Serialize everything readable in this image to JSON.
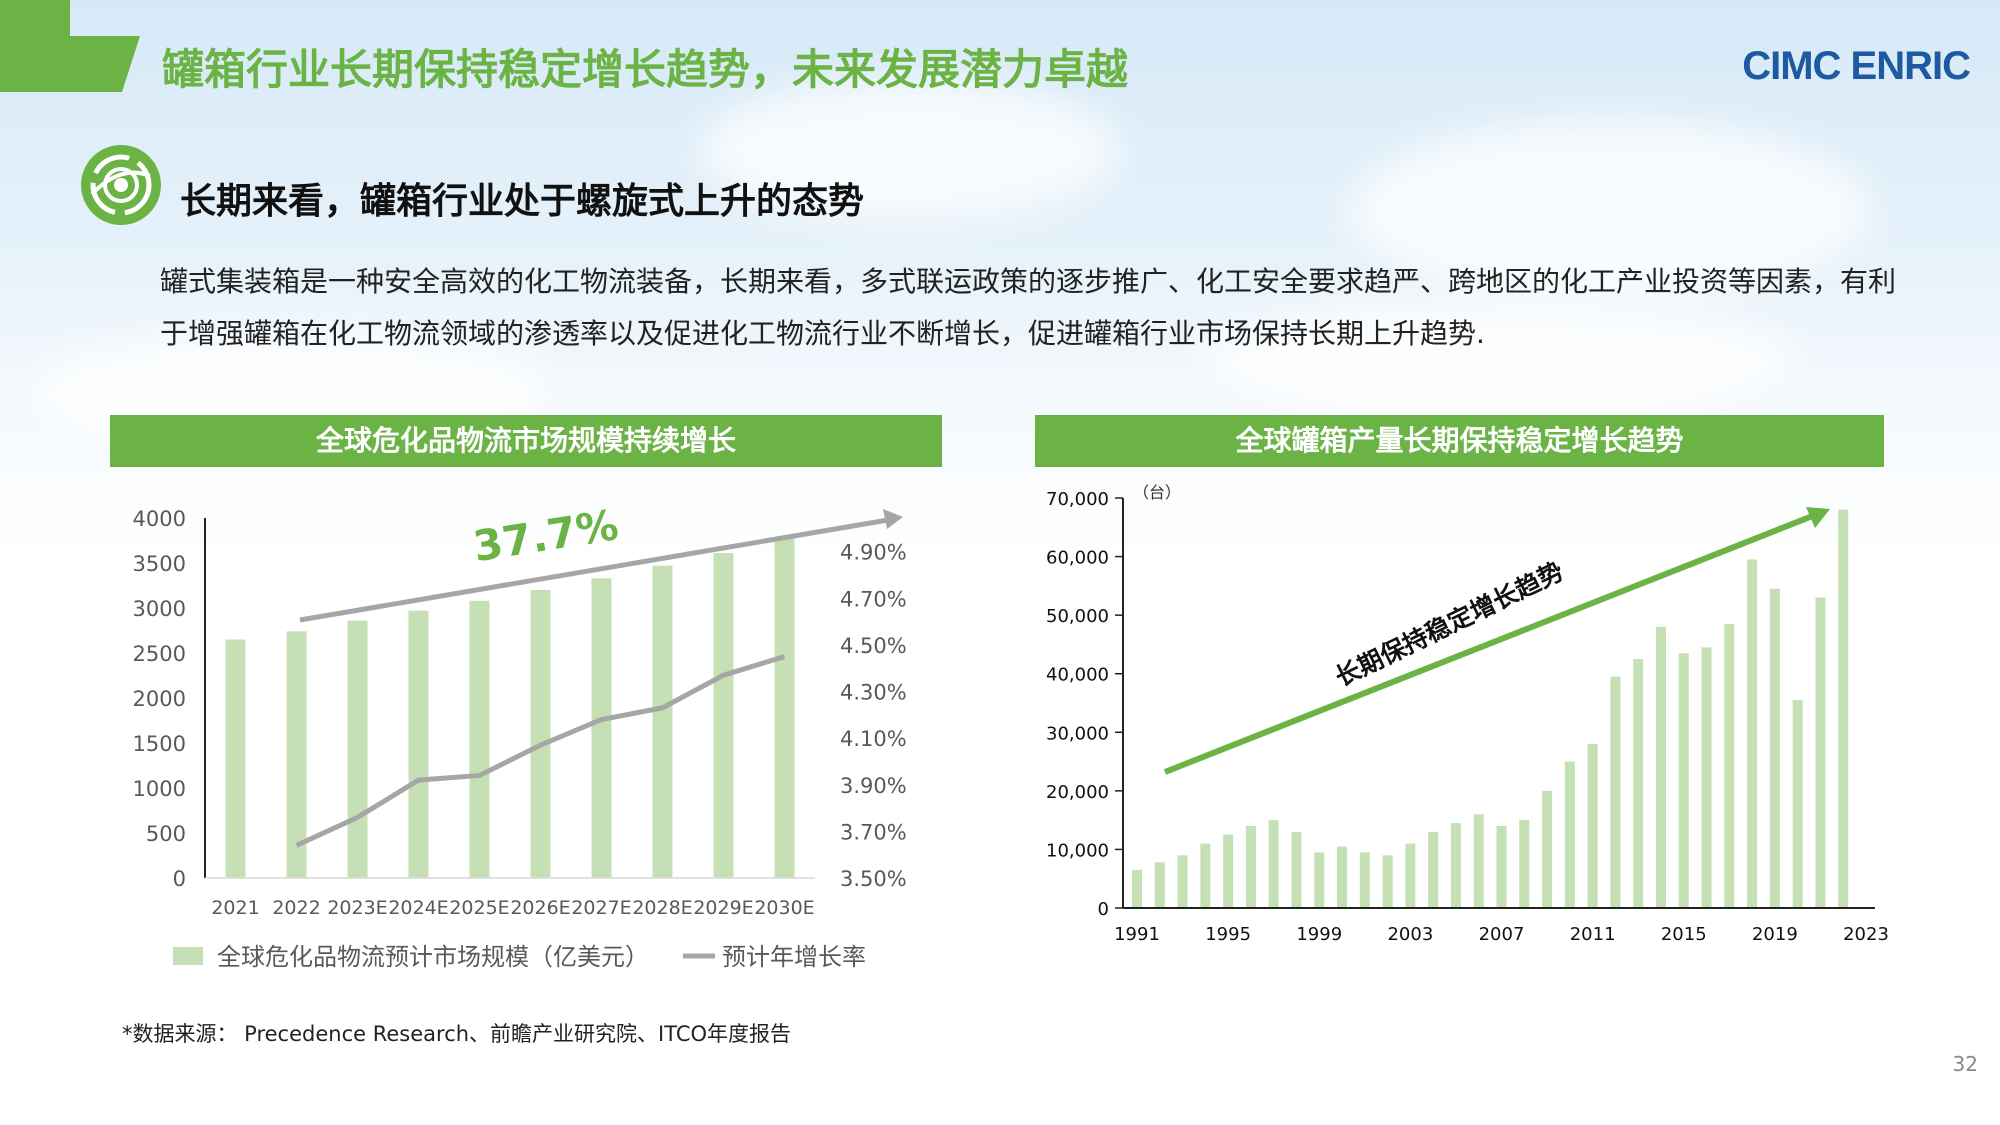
{
  "header": {
    "title": "罐箱行业长期保持稳定增长趋势，未来发展潜力卓越",
    "logo_text": "CIMC ENRIC",
    "accent_color": "#6ab344",
    "logo_color": "#1d5aa2"
  },
  "section": {
    "icon": "target-globe-icon",
    "heading": "长期来看，罐箱行业处于螺旋式上升的态势",
    "body": "罐式集装箱是一种安全高效的化工物流装备，长期来看，多式联运政策的逐步推广、化工安全要求趋严、跨地区的化工产业投资等因素，有利于增强罐箱在化工物流领域的渗透率以及促进化工物流行业不断增长，促进罐箱行业市场保持长期上升趋势."
  },
  "chart_data": [
    {
      "type": "bar",
      "title": "全球危化品物流市场规模持续增长",
      "categories": [
        "2021",
        "2022",
        "2023E",
        "2024E",
        "2025E",
        "2026E",
        "2027E",
        "2028E",
        "2029E",
        "2030E"
      ],
      "series": [
        {
          "name": "全球危化品物流预计市场规模（亿美元）",
          "type": "bar",
          "axis": "left",
          "color": "#c5e0b4",
          "values": [
            2650,
            2740,
            2860,
            2970,
            3080,
            3200,
            3330,
            3470,
            3610,
            3770
          ]
        },
        {
          "name": "预计年增长率",
          "type": "line",
          "axis": "right",
          "color": "#a6a6a6",
          "values": [
            null,
            3.64,
            3.76,
            3.92,
            3.94,
            4.07,
            4.18,
            4.23,
            4.37,
            4.45
          ]
        }
      ],
      "ylim_left": [
        0,
        4000
      ],
      "yticks_left": [
        "0",
        "500",
        "1000",
        "1500",
        "2000",
        "2500",
        "3000",
        "3500",
        "4000"
      ],
      "ylim_right": [
        3.5,
        5.0
      ],
      "yticks_right": [
        "3.50%",
        "3.70%",
        "3.90%",
        "4.10%",
        "4.30%",
        "4.50%",
        "4.70%",
        "4.90%"
      ],
      "annotation": "37.7%",
      "legend": "bottom"
    },
    {
      "type": "bar",
      "title": "全球罐箱产量长期保持稳定增长趋势",
      "unit": "（台）",
      "x": [
        1991,
        1992,
        1993,
        1994,
        1995,
        1996,
        1997,
        1998,
        1999,
        2000,
        2001,
        2002,
        2003,
        2004,
        2005,
        2006,
        2007,
        2008,
        2009,
        2010,
        2011,
        2012,
        2013,
        2014,
        2015,
        2016,
        2017,
        2018,
        2019,
        2020,
        2021,
        2022
      ],
      "xtick_labels": [
        "1991",
        "1995",
        "1999",
        "2003",
        "2007",
        "2011",
        "2015",
        "2019",
        "2023"
      ],
      "values": [
        6500,
        7800,
        9000,
        11000,
        12500,
        14000,
        15000,
        13000,
        9500,
        10500,
        9500,
        9000,
        11000,
        13000,
        14500,
        16000,
        14000,
        15000,
        20000,
        25000,
        28000,
        39500,
        42500,
        48000,
        43500,
        44500,
        48500,
        59500,
        54500,
        35500,
        53000,
        68000
      ],
      "color": "#c5e0b4",
      "ylim": [
        0,
        70000
      ],
      "yticks": [
        "0",
        "10,000",
        "20,000",
        "30,000",
        "40,000",
        "50,000",
        "60,000",
        "70,000"
      ],
      "annotation": "长期保持稳定增长趋势",
      "trend_color": "#6ab344"
    }
  ],
  "footer": {
    "source": "*数据来源： Precedence Research、前瞻产业研究院、ITCO年度报告",
    "page": "32"
  }
}
